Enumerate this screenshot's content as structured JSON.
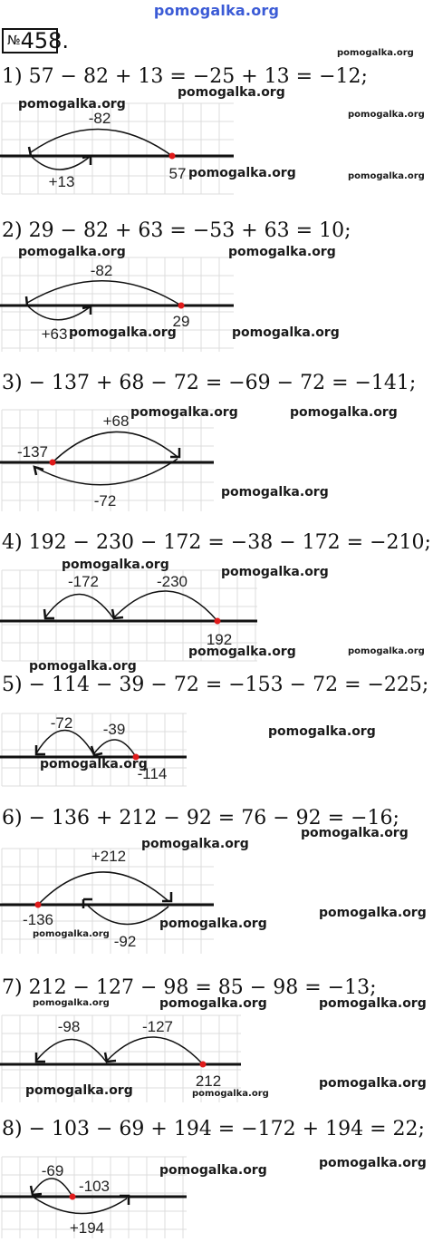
{
  "site": "pomogalka.org",
  "number": "458.",
  "number_prefix": "№",
  "items": [
    {
      "eq": "1) 57 − 82 + 13 = −25 + 13 = −12;",
      "labels": [
        "-82",
        "+13",
        "57"
      ]
    },
    {
      "eq": "2) 29 − 82 + 63 = −53 + 63 = 10;",
      "labels": [
        "-82",
        "+63",
        "29"
      ]
    },
    {
      "eq": "3) − 137 + 68 − 72 = −69 − 72 = −141;",
      "labels": [
        "+68",
        "-137",
        "-72"
      ]
    },
    {
      "eq": "4) 192 − 230 − 172 = −38 − 172 = −210;",
      "labels": [
        "-172",
        "-230",
        "192"
      ]
    },
    {
      "eq": "5) − 114 − 39 − 72 = −153 − 72 = −225;",
      "labels": [
        "-72",
        "-39",
        "-114"
      ]
    },
    {
      "eq": "6) − 136 + 212 − 92 = 76 − 92 = −16;",
      "labels": [
        "+212",
        "-136",
        "-92"
      ]
    },
    {
      "eq": "7) 212 − 127 − 98 = 85 − 98 = −13;",
      "labels": [
        "-98",
        "-127",
        "212"
      ]
    },
    {
      "eq": "8) − 103 − 69 + 194 = −172 + 194 = 22;",
      "labels": [
        "-69",
        "-103",
        "+194"
      ]
    }
  ]
}
